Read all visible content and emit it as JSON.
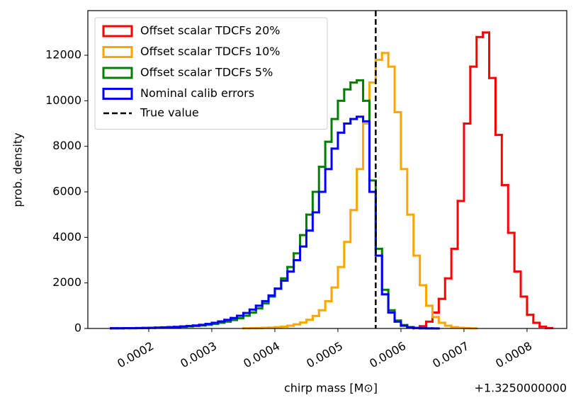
{
  "chart_data": {
    "type": "histogram",
    "xlabel": "chirp mass [M⊙]",
    "ylabel": "prob. density",
    "x_offset_label": "+1.3250000000",
    "xlim": [
      0.0001034,
      0.000863
    ],
    "ylim": [
      0,
      13960
    ],
    "xticks": [
      0.0002,
      0.0003,
      0.0004,
      0.0005,
      0.0006,
      0.0007,
      0.0008
    ],
    "yticks": [
      0,
      2000,
      4000,
      6000,
      8000,
      10000,
      12000
    ],
    "legend": "upper left",
    "series": [
      {
        "name": "Offset scalar TDCFs 20%",
        "color": "#ff0000",
        "bins": [
          0.00062,
          0.00063,
          0.00064,
          0.00065,
          0.00066,
          0.00067,
          0.00068,
          0.00069,
          0.0007,
          0.00071,
          0.00072,
          0.00073,
          0.00074,
          0.00075,
          0.00076,
          0.00077,
          0.00078,
          0.00079,
          0.0008,
          0.00081,
          0.00082,
          0.00083,
          0.00084
        ],
        "values": [
          30,
          100,
          300,
          700,
          1300,
          2200,
          3500,
          5600,
          9000,
          11500,
          12800,
          13000,
          11000,
          8500,
          6300,
          4200,
          2500,
          1400,
          600,
          250,
          80,
          20
        ]
      },
      {
        "name": "Offset scalar TDCFs 10%",
        "color": "#ffa500",
        "bins": [
          0.00035,
          0.00036,
          0.00037,
          0.00038,
          0.00039,
          0.0004,
          0.00041,
          0.00042,
          0.00043,
          0.00044,
          0.00045,
          0.00046,
          0.00047,
          0.00048,
          0.00049,
          0.0005,
          0.00051,
          0.00052,
          0.00053,
          0.00054,
          0.00055,
          0.00056,
          0.00057,
          0.00058,
          0.00059,
          0.0006,
          0.00061,
          0.00062,
          0.00063,
          0.00064,
          0.00065,
          0.00066,
          0.00067,
          0.00068,
          0.00069,
          0.0007,
          0.00071,
          0.00072
        ],
        "values": [
          10,
          15,
          20,
          30,
          40,
          60,
          80,
          120,
          180,
          260,
          380,
          550,
          800,
          1200,
          1800,
          2700,
          3800,
          5200,
          7000,
          9000,
          10800,
          11800,
          12100,
          11500,
          9500,
          7000,
          5000,
          3200,
          1900,
          1000,
          500,
          250,
          120,
          60,
          30,
          15,
          5
        ]
      },
      {
        "name": "Offset scalar TDCFs 5%",
        "color": "#008000",
        "bins": [
          0.00014,
          0.00015,
          0.00016,
          0.00017,
          0.00018,
          0.00019,
          0.0002,
          0.00021,
          0.00022,
          0.00023,
          0.00024,
          0.00025,
          0.00026,
          0.00027,
          0.00028,
          0.00029,
          0.0003,
          0.00031,
          0.00032,
          0.00033,
          0.00034,
          0.00035,
          0.00036,
          0.00037,
          0.00038,
          0.00039,
          0.0004,
          0.00041,
          0.00042,
          0.00043,
          0.00044,
          0.00045,
          0.00046,
          0.00047,
          0.00048,
          0.00049,
          0.0005,
          0.00051,
          0.00052,
          0.00053,
          0.00054,
          0.00055,
          0.00056,
          0.00057,
          0.00058,
          0.00059,
          0.0006,
          0.00061,
          0.00062,
          0.00063,
          0.00064,
          0.00065,
          0.00066
        ],
        "values": [
          5,
          5,
          10,
          10,
          15,
          20,
          25,
          30,
          40,
          50,
          60,
          75,
          90,
          110,
          130,
          160,
          200,
          250,
          300,
          370,
          450,
          560,
          700,
          880,
          1100,
          1400,
          1750,
          2200,
          2700,
          3300,
          4100,
          5000,
          6000,
          7100,
          8200,
          9200,
          10000,
          10500,
          10800,
          10900,
          10000,
          6500,
          3500,
          1700,
          800,
          350,
          150,
          60,
          25,
          10,
          5,
          2
        ]
      },
      {
        "name": "Nominal calib errors",
        "color": "#0000ff",
        "bins": [
          0.00014,
          0.00015,
          0.00016,
          0.00017,
          0.00018,
          0.00019,
          0.0002,
          0.00021,
          0.00022,
          0.00023,
          0.00024,
          0.00025,
          0.00026,
          0.00027,
          0.00028,
          0.00029,
          0.0003,
          0.00031,
          0.00032,
          0.00033,
          0.00034,
          0.00035,
          0.00036,
          0.00037,
          0.00038,
          0.00039,
          0.0004,
          0.00041,
          0.00042,
          0.00043,
          0.00044,
          0.00045,
          0.00046,
          0.00047,
          0.00048,
          0.00049,
          0.0005,
          0.00051,
          0.00052,
          0.00053,
          0.00054,
          0.00055,
          0.00056,
          0.00057,
          0.00058,
          0.00059,
          0.0006,
          0.00061,
          0.00062,
          0.00063,
          0.00064,
          0.00065,
          0.00066
        ],
        "values": [
          10,
          10,
          15,
          15,
          20,
          25,
          30,
          40,
          50,
          60,
          70,
          90,
          110,
          130,
          160,
          200,
          250,
          310,
          380,
          460,
          560,
          680,
          830,
          1000,
          1200,
          1450,
          1750,
          2100,
          2500,
          3000,
          3600,
          4300,
          5100,
          6000,
          7000,
          7900,
          8600,
          9000,
          9200,
          9300,
          9100,
          6000,
          3200,
          1500,
          700,
          300,
          120,
          50,
          20,
          8,
          3,
          1
        ]
      }
    ],
    "vline": {
      "name": "True value",
      "x": 0.00056,
      "color": "#000000"
    }
  }
}
